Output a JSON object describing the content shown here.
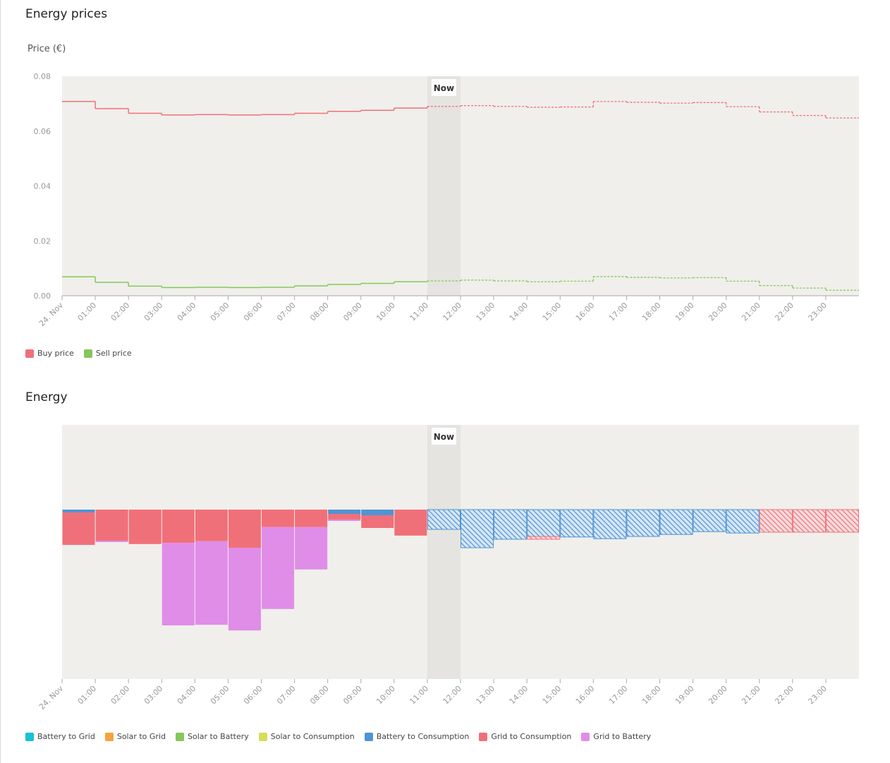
{
  "prices": {
    "title": "Energy prices",
    "unit_label": "Price (€)",
    "now_label": "Now",
    "legend": [
      {
        "label": "Buy price",
        "color": "#f07079"
      },
      {
        "label": "Sell price",
        "color": "#86c75a"
      }
    ]
  },
  "energy": {
    "title": "Energy",
    "now_label": "Now",
    "legend": [
      {
        "label": "Battery to Grid",
        "color": "#19c1d4"
      },
      {
        "label": "Solar to Grid",
        "color": "#f4a43b"
      },
      {
        "label": "Solar to Battery",
        "color": "#86c75a"
      },
      {
        "label": "Solar to Consumption",
        "color": "#d4de5a"
      },
      {
        "label": "Battery to Consumption",
        "color": "#4f94d4"
      },
      {
        "label": "Grid to Consumption",
        "color": "#f07079"
      },
      {
        "label": "Grid to Battery",
        "color": "#e08de8"
      }
    ]
  },
  "chart_data": [
    {
      "type": "line",
      "step": true,
      "title": "Energy prices",
      "ylabel": "Price (€)",
      "ylim": [
        0,
        0.08
      ],
      "yticks": [
        "0.08",
        "0.06",
        "0.04",
        "0.02",
        "0.00"
      ],
      "ytick_values": [
        0.08,
        0.06,
        0.04,
        0.02,
        0.0
      ],
      "x_tick_labels": [
        "24. Nov",
        "01:00",
        "02:00",
        "03:00",
        "04:00",
        "05:00",
        "06:00",
        "07:00",
        "08:00",
        "09:00",
        "10:00",
        "11:00",
        "12:00",
        "13:00",
        "14:00",
        "15:00",
        "16:00",
        "17:00",
        "18:00",
        "19:00",
        "20:00",
        "21:00",
        "22:00",
        "23:00"
      ],
      "now_hour": 11,
      "forecast_from_hour": 11,
      "series": [
        {
          "name": "Buy price",
          "color": "#f07079",
          "values": [
            0.0708,
            0.0682,
            0.0665,
            0.0659,
            0.066,
            0.0659,
            0.066,
            0.0665,
            0.0672,
            0.0676,
            0.0684,
            0.069,
            0.0693,
            0.069,
            0.0687,
            0.0688,
            0.0708,
            0.0705,
            0.0702,
            0.0704,
            0.0689,
            0.067,
            0.0657,
            0.0648
          ]
        },
        {
          "name": "Sell price",
          "color": "#86c75a",
          "values": [
            0.0069,
            0.0049,
            0.0035,
            0.003,
            0.0031,
            0.003,
            0.0031,
            0.0036,
            0.0041,
            0.0045,
            0.0051,
            0.0054,
            0.0057,
            0.0054,
            0.0051,
            0.0053,
            0.007,
            0.0067,
            0.0065,
            0.0066,
            0.0053,
            0.0037,
            0.0028,
            0.002
          ]
        }
      ]
    },
    {
      "type": "bar",
      "stacked": true,
      "title": "Energy",
      "ylim": [
        -0.6,
        0.3
      ],
      "x_tick_labels": [
        "24. Nov",
        "01:00",
        "02:00",
        "03:00",
        "04:00",
        "05:00",
        "06:00",
        "07:00",
        "08:00",
        "09:00",
        "10:00",
        "11:00",
        "12:00",
        "13:00",
        "14:00",
        "15:00",
        "16:00",
        "17:00",
        "18:00",
        "19:00",
        "20:00",
        "21:00",
        "22:00",
        "23:00"
      ],
      "now_hour": 11,
      "forecast_from_hour": 11,
      "series": [
        {
          "name": "Battery to Grid",
          "color": "#19c1d4",
          "values": [
            0,
            0,
            0,
            0,
            0,
            0,
            0,
            0,
            0,
            0,
            0,
            0,
            0,
            0,
            0,
            0,
            0,
            0,
            0,
            0,
            0,
            0,
            0,
            0
          ]
        },
        {
          "name": "Solar to Grid",
          "color": "#f4a43b",
          "values": [
            0,
            0,
            0,
            0,
            0,
            0,
            0,
            0,
            0,
            0,
            0,
            0,
            0,
            0,
            0,
            0,
            0,
            0,
            0,
            0,
            0,
            0,
            0,
            0
          ]
        },
        {
          "name": "Solar to Battery",
          "color": "#86c75a",
          "values": [
            0,
            0,
            0,
            0,
            0,
            0,
            0,
            0,
            0,
            0,
            0,
            0,
            0,
            0,
            0,
            0,
            0,
            0,
            0,
            0,
            0,
            0,
            0,
            0
          ]
        },
        {
          "name": "Solar to Consumption",
          "color": "#d4de5a",
          "values": [
            0,
            0,
            0,
            0,
            0,
            0,
            0,
            0,
            0,
            0,
            0,
            0,
            0,
            0,
            0,
            0,
            0,
            0,
            0,
            0,
            0,
            0,
            0,
            0
          ]
        },
        {
          "name": "Battery to Consumption",
          "color": "#4f94d4",
          "values": [
            -0.01,
            0,
            0,
            0,
            0,
            0,
            0,
            0,
            -0.015,
            -0.02,
            0,
            -0.07,
            -0.135,
            -0.105,
            -0.095,
            -0.097,
            -0.103,
            -0.095,
            -0.088,
            -0.078,
            -0.083,
            0,
            0,
            0
          ]
        },
        {
          "name": "Grid to Consumption",
          "color": "#f07079",
          "values": [
            -0.115,
            -0.11,
            -0.122,
            -0.118,
            -0.112,
            -0.135,
            -0.062,
            -0.062,
            -0.02,
            -0.045,
            -0.092,
            0,
            0,
            0,
            -0.01,
            0,
            0,
            0,
            0,
            0,
            0,
            -0.08,
            -0.08,
            -0.08
          ]
        },
        {
          "name": "Grid to Battery",
          "color": "#e08de8",
          "values": [
            0,
            -0.005,
            0,
            -0.292,
            -0.296,
            -0.293,
            -0.29,
            -0.15,
            -0.005,
            0,
            0,
            0,
            0,
            0,
            0,
            0,
            0,
            0,
            0,
            0,
            0,
            0,
            0,
            0
          ]
        }
      ]
    }
  ]
}
